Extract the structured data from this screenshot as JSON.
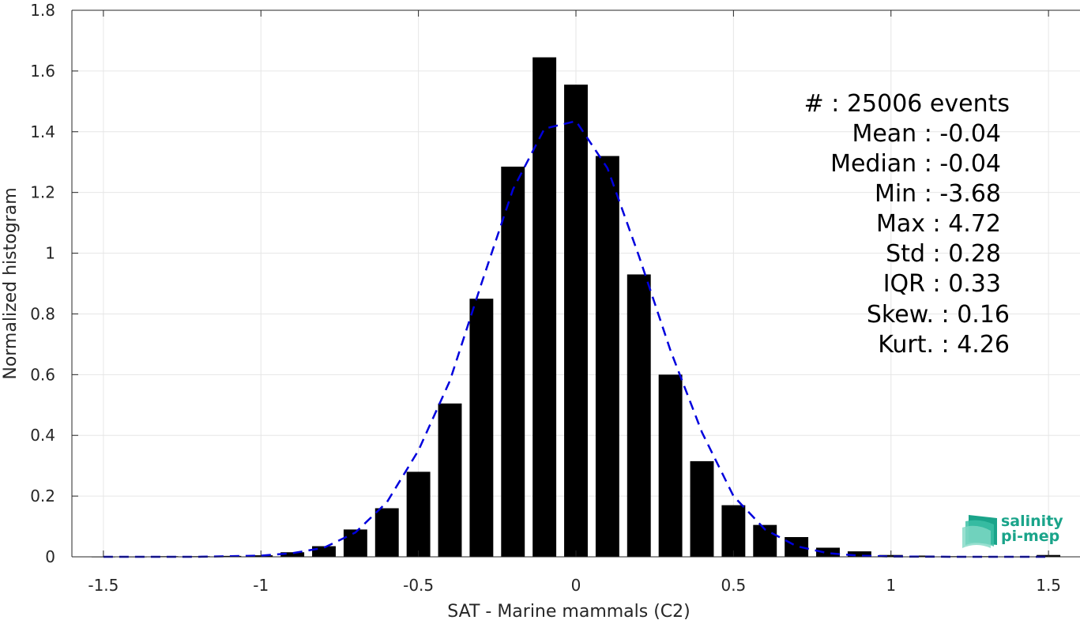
{
  "chart_data": {
    "type": "bar",
    "xlabel": "SAT - Marine mammals (C2)",
    "ylabel": "Normalized histogram",
    "xlim": [
      -1.6,
      1.6
    ],
    "ylim": [
      0,
      1.8
    ],
    "grid": true,
    "bar_width": 0.075,
    "x_ticks": [
      "-1.5",
      "-1",
      "-0.5",
      "0",
      "0.5",
      "1",
      "1.5"
    ],
    "y_ticks": [
      "0",
      "0.2",
      "0.4",
      "0.6",
      "0.8",
      "1",
      "1.2",
      "1.4",
      "1.6",
      "1.8"
    ],
    "bars": {
      "x": [
        -1.5,
        -1.4,
        -1.3,
        -1.2,
        -1.1,
        -1.0,
        -0.9,
        -0.8,
        -0.7,
        -0.6,
        -0.5,
        -0.4,
        -0.3,
        -0.2,
        -0.1,
        0.0,
        0.1,
        0.2,
        0.3,
        0.4,
        0.5,
        0.6,
        0.7,
        0.8,
        0.9,
        1.0,
        1.1,
        1.2,
        1.3,
        1.4,
        1.5
      ],
      "values": [
        0.001,
        0.001,
        0.002,
        0.002,
        0.003,
        0.005,
        0.015,
        0.035,
        0.09,
        0.16,
        0.28,
        0.505,
        0.85,
        1.285,
        1.645,
        1.555,
        1.32,
        0.93,
        0.6,
        0.315,
        0.17,
        0.105,
        0.065,
        0.03,
        0.018,
        0.006,
        0.004,
        0.002,
        0.002,
        0.001,
        0.006
      ]
    },
    "fit_curve": {
      "style": "dashed",
      "color": "#0000dd",
      "x": [
        -1.5,
        -1.2,
        -1.0,
        -0.9,
        -0.8,
        -0.7,
        -0.6,
        -0.5,
        -0.4,
        -0.3,
        -0.2,
        -0.1,
        0.0,
        0.1,
        0.2,
        0.3,
        0.4,
        0.5,
        0.6,
        0.7,
        0.8,
        0.9,
        1.0,
        1.2,
        1.5
      ],
      "y": [
        0.0,
        0.0,
        0.004,
        0.012,
        0.03,
        0.08,
        0.18,
        0.35,
        0.58,
        0.9,
        1.21,
        1.41,
        1.435,
        1.28,
        0.99,
        0.68,
        0.41,
        0.2,
        0.09,
        0.035,
        0.012,
        0.004,
        0.001,
        0.0,
        0.0
      ]
    }
  },
  "stats": {
    "events": "#  : 25006 events",
    "mean": "Mean : -0.04",
    "median": "Median : -0.04",
    "min": "Min : -3.68",
    "max": "Max : 4.72",
    "std": "Std : 0.28",
    "iqr": "IQR : 0.33",
    "skew": "Skew. : 0.16",
    "kurt": "Kurt. : 4.26"
  },
  "logo": {
    "line1": "salinity",
    "line2": "pi-mep",
    "color": "#1aa48a"
  }
}
